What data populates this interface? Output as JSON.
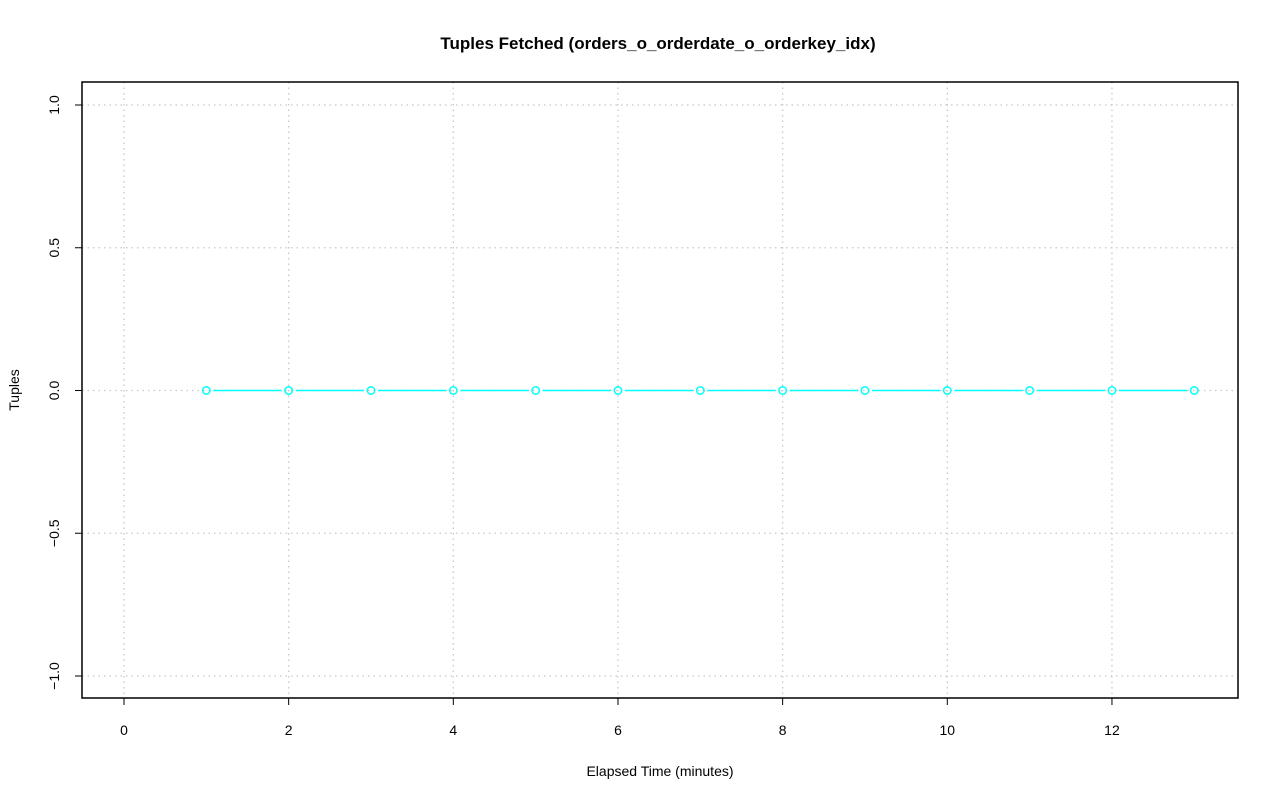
{
  "chart_data": {
    "type": "line",
    "title": "Tuples Fetched (orders_o_orderdate_o_orderkey_idx)",
    "xlabel": "Elapsed Time (minutes)",
    "ylabel": "Tuples",
    "xlim": [
      -0.5,
      13.5
    ],
    "ylim": [
      -1.08,
      1.08
    ],
    "xticks": [
      "0",
      "2",
      "4",
      "6",
      "8",
      "10",
      "12"
    ],
    "yticks": [
      "-1.0",
      "-0.5",
      "0.0",
      "0.5",
      "1.0"
    ],
    "grid": true,
    "series": [
      {
        "color": "#00ffff",
        "marker": "open-circle",
        "x": [
          1,
          2,
          3,
          4,
          5,
          6,
          7,
          8,
          9,
          10,
          11,
          12,
          13
        ],
        "y": [
          0,
          0,
          0,
          0,
          0,
          0,
          0,
          0,
          0,
          0,
          0,
          0,
          0
        ]
      }
    ]
  }
}
